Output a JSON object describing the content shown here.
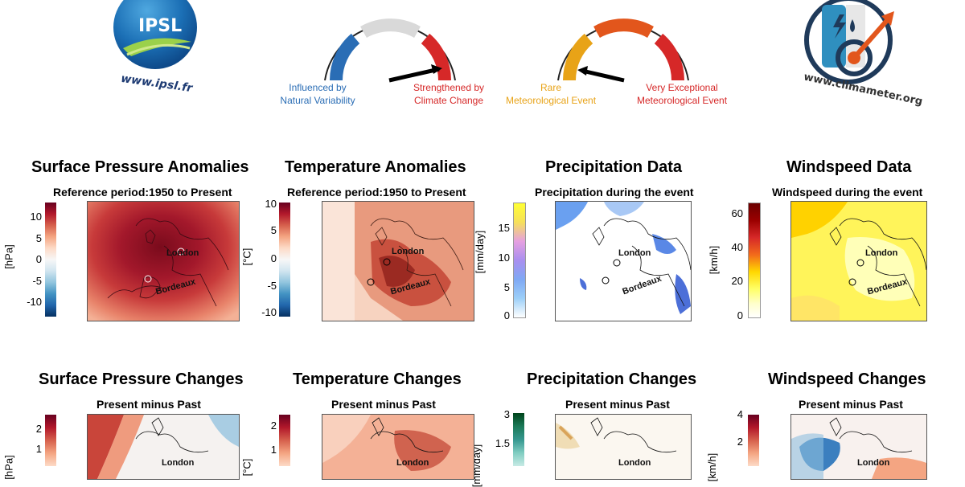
{
  "header": {
    "ipsl_logo_text": "IPSL",
    "ipsl_url": "www.ipsl.fr",
    "climameter_url": "www.climameter.org",
    "gauge_left": {
      "label_left_line1": "Influenced by",
      "label_left_line2": "Natural Variability",
      "label_right_line1": "Strengthened by",
      "label_right_line2": "Climate Change",
      "color_left": "#2a6db5",
      "color_mid": "#d9d9d9",
      "color_right": "#d62828"
    },
    "gauge_right": {
      "label_left_line1": "Rare",
      "label_left_line2": "Meteorological Event",
      "label_right_line1": "Very Exceptional",
      "label_right_line2": "Meteorological Event",
      "color_left": "#e8a317",
      "color_mid": "#e2561c",
      "color_right": "#d62828"
    }
  },
  "row1": [
    {
      "title": "Surface Pressure Anomalies",
      "subtitle": "Reference period:1950 to Present",
      "unit": "[hPa]",
      "ticks": [
        "10",
        "5",
        "0",
        "-5",
        "-10"
      ]
    },
    {
      "title": "Temperature Anomalies",
      "subtitle": "Reference period:1950 to Present",
      "unit": "[°C]",
      "ticks": [
        "10",
        "5",
        "0",
        "-5",
        "-10"
      ]
    },
    {
      "title": "Precipitation Data",
      "subtitle": "Precipitation during the event",
      "unit": "[mm/day]",
      "ticks": [
        "15",
        "10",
        "5",
        "0"
      ]
    },
    {
      "title": "Windspeed Data",
      "subtitle": "Windspeed during the event",
      "unit": "[km/h]",
      "ticks": [
        "60",
        "40",
        "20",
        "0"
      ]
    }
  ],
  "row2": [
    {
      "title": "Surface Pressure Changes",
      "subtitle": "Present minus Past",
      "unit": "[hPa]",
      "ticks": [
        "2",
        "1"
      ]
    },
    {
      "title": "Temperature Changes",
      "subtitle": "Present minus Past",
      "unit": "[°C]",
      "ticks": [
        "2",
        "1"
      ]
    },
    {
      "title": "Precipitation Changes",
      "subtitle": "Present minus Past",
      "unit": "[mm/day]",
      "ticks": [
        "3",
        "1.5"
      ]
    },
    {
      "title": "Windspeed Changes",
      "subtitle": "Present minus Past",
      "unit": "[km/h]",
      "ticks": [
        "4",
        "2"
      ]
    }
  ],
  "map_labels": {
    "city_a": "London",
    "city_b": "Bordeaux"
  }
}
